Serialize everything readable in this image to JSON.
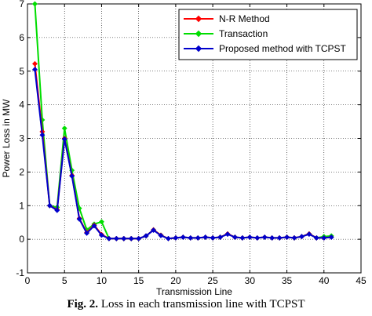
{
  "caption": {
    "prefix": "Fig. 2.",
    "text": " Loss in each transmission line with TCPST"
  },
  "chart_data": {
    "type": "line",
    "xlabel": "Transmission Line",
    "ylabel": "Power Loss in MW",
    "xlim": [
      0,
      45
    ],
    "ylim": [
      -1,
      7
    ],
    "xticks": [
      0,
      5,
      10,
      15,
      20,
      25,
      30,
      35,
      40,
      45
    ],
    "yticks": [
      -1,
      0,
      1,
      2,
      3,
      4,
      5,
      6,
      7
    ],
    "grid": true,
    "legend_position": "top-right",
    "x": [
      1,
      2,
      3,
      4,
      5,
      6,
      7,
      8,
      9,
      10,
      11,
      12,
      13,
      14,
      15,
      16,
      17,
      18,
      19,
      20,
      21,
      22,
      23,
      24,
      25,
      26,
      27,
      28,
      29,
      30,
      31,
      32,
      33,
      34,
      35,
      36,
      37,
      38,
      39,
      40,
      41
    ],
    "series": [
      {
        "name": "N-R Method",
        "color": "#ff0000",
        "marker": "diamond",
        "values": [
          5.22,
          3.2,
          1.0,
          0.88,
          3.0,
          1.9,
          0.62,
          0.2,
          0.42,
          0.14,
          0.02,
          0.02,
          0.02,
          0.02,
          0.02,
          0.1,
          0.28,
          0.12,
          0.02,
          0.04,
          0.06,
          0.04,
          0.04,
          0.06,
          0.04,
          0.06,
          0.16,
          0.06,
          0.04,
          0.06,
          0.04,
          0.06,
          0.04,
          0.04,
          0.06,
          0.04,
          0.08,
          0.16,
          0.04,
          0.04,
          0.06
        ]
      },
      {
        "name": "Transaction",
        "color": "#00dd00",
        "marker": "diamond",
        "values": [
          7.0,
          3.55,
          1.0,
          0.95,
          3.3,
          2.05,
          0.92,
          0.28,
          0.45,
          0.52,
          0.02,
          0.02,
          0.02,
          0.02,
          0.02,
          0.1,
          0.28,
          0.12,
          0.02,
          0.04,
          0.06,
          0.04,
          0.04,
          0.06,
          0.04,
          0.06,
          0.16,
          0.06,
          0.04,
          0.06,
          0.04,
          0.06,
          0.04,
          0.04,
          0.06,
          0.04,
          0.08,
          0.16,
          0.04,
          0.08,
          0.1
        ]
      },
      {
        "name": "Proposed method with TCPST",
        "color": "#0000cc",
        "marker": "diamond",
        "values": [
          5.05,
          3.1,
          1.0,
          0.86,
          2.98,
          1.88,
          0.6,
          0.18,
          0.4,
          0.12,
          0.02,
          0.02,
          0.02,
          0.02,
          0.02,
          0.1,
          0.27,
          0.11,
          0.02,
          0.04,
          0.06,
          0.04,
          0.04,
          0.06,
          0.04,
          0.06,
          0.15,
          0.06,
          0.04,
          0.06,
          0.04,
          0.06,
          0.04,
          0.04,
          0.06,
          0.04,
          0.08,
          0.15,
          0.04,
          0.04,
          0.06
        ]
      }
    ]
  }
}
